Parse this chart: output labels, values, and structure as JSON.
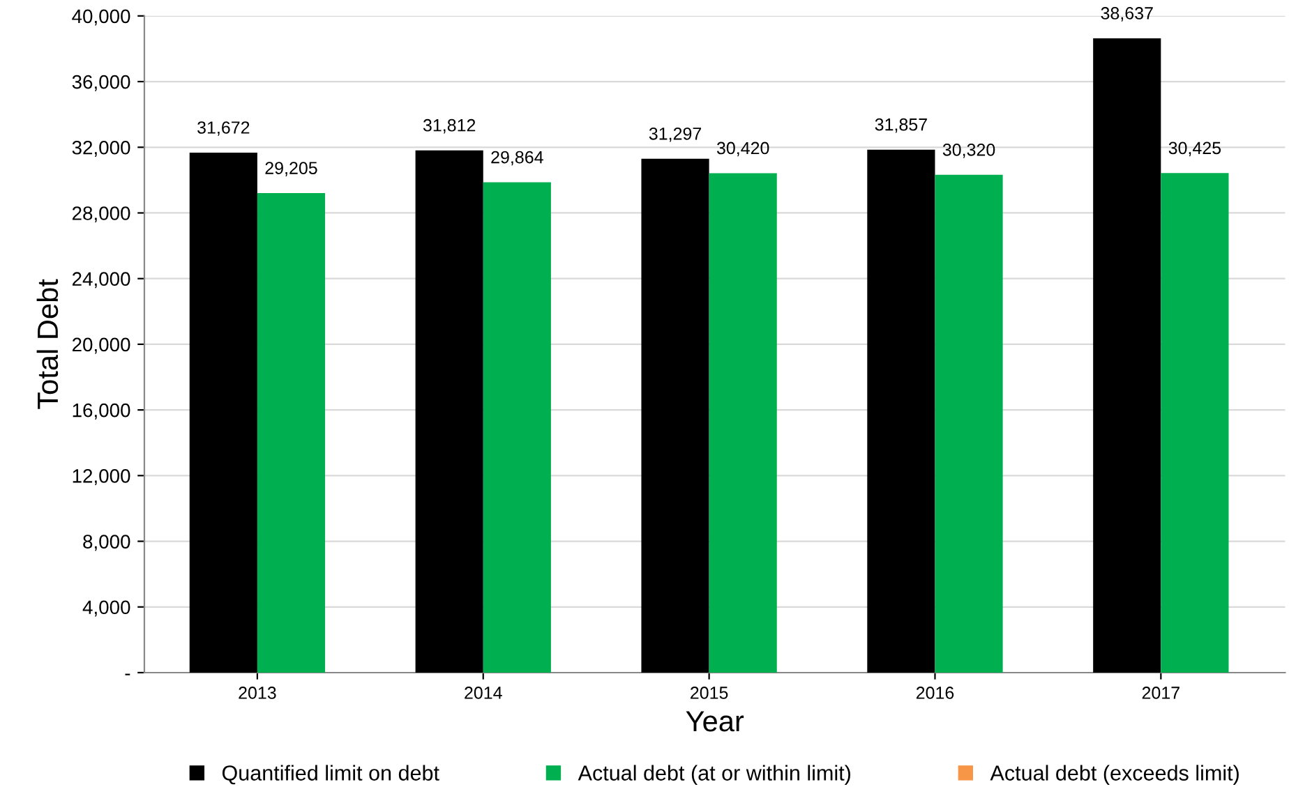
{
  "chart_data": {
    "type": "bar",
    "xlabel": "Year",
    "ylabel": "Total Debt",
    "categories": [
      "2013",
      "2014",
      "2015",
      "2016",
      "2017"
    ],
    "series": [
      {
        "name": "Quantified limit on debt",
        "color": "#000000",
        "values": [
          31672,
          31812,
          31297,
          31857,
          38637
        ],
        "value_labels": [
          "31,672",
          "31,812",
          "31,297",
          "31,857",
          "38,637"
        ]
      },
      {
        "name": "Actual debt (at or within limit)",
        "color": "#00b050",
        "values": [
          29205,
          29864,
          30420,
          30320,
          30425
        ],
        "value_labels": [
          "29,205",
          "29,864",
          "30,420",
          "30,320",
          "30,425"
        ]
      },
      {
        "name": "Actual debt (exceeds limit)",
        "color": "#f79646",
        "values": [
          null,
          null,
          null,
          null,
          null
        ]
      }
    ],
    "ylim": [
      0,
      40000
    ],
    "yticks": [
      {
        "value": 0,
        "label": "-"
      },
      {
        "value": 4000,
        "label": "4,000"
      },
      {
        "value": 8000,
        "label": "8,000"
      },
      {
        "value": 12000,
        "label": "12,000"
      },
      {
        "value": 16000,
        "label": "16,000"
      },
      {
        "value": 20000,
        "label": "20,000"
      },
      {
        "value": 24000,
        "label": "24,000"
      },
      {
        "value": 28000,
        "label": "28,000"
      },
      {
        "value": 32000,
        "label": "32,000"
      },
      {
        "value": 36000,
        "label": "36,000"
      },
      {
        "value": 40000,
        "label": "40,000"
      }
    ],
    "grid": "y",
    "legend": "bottom"
  }
}
